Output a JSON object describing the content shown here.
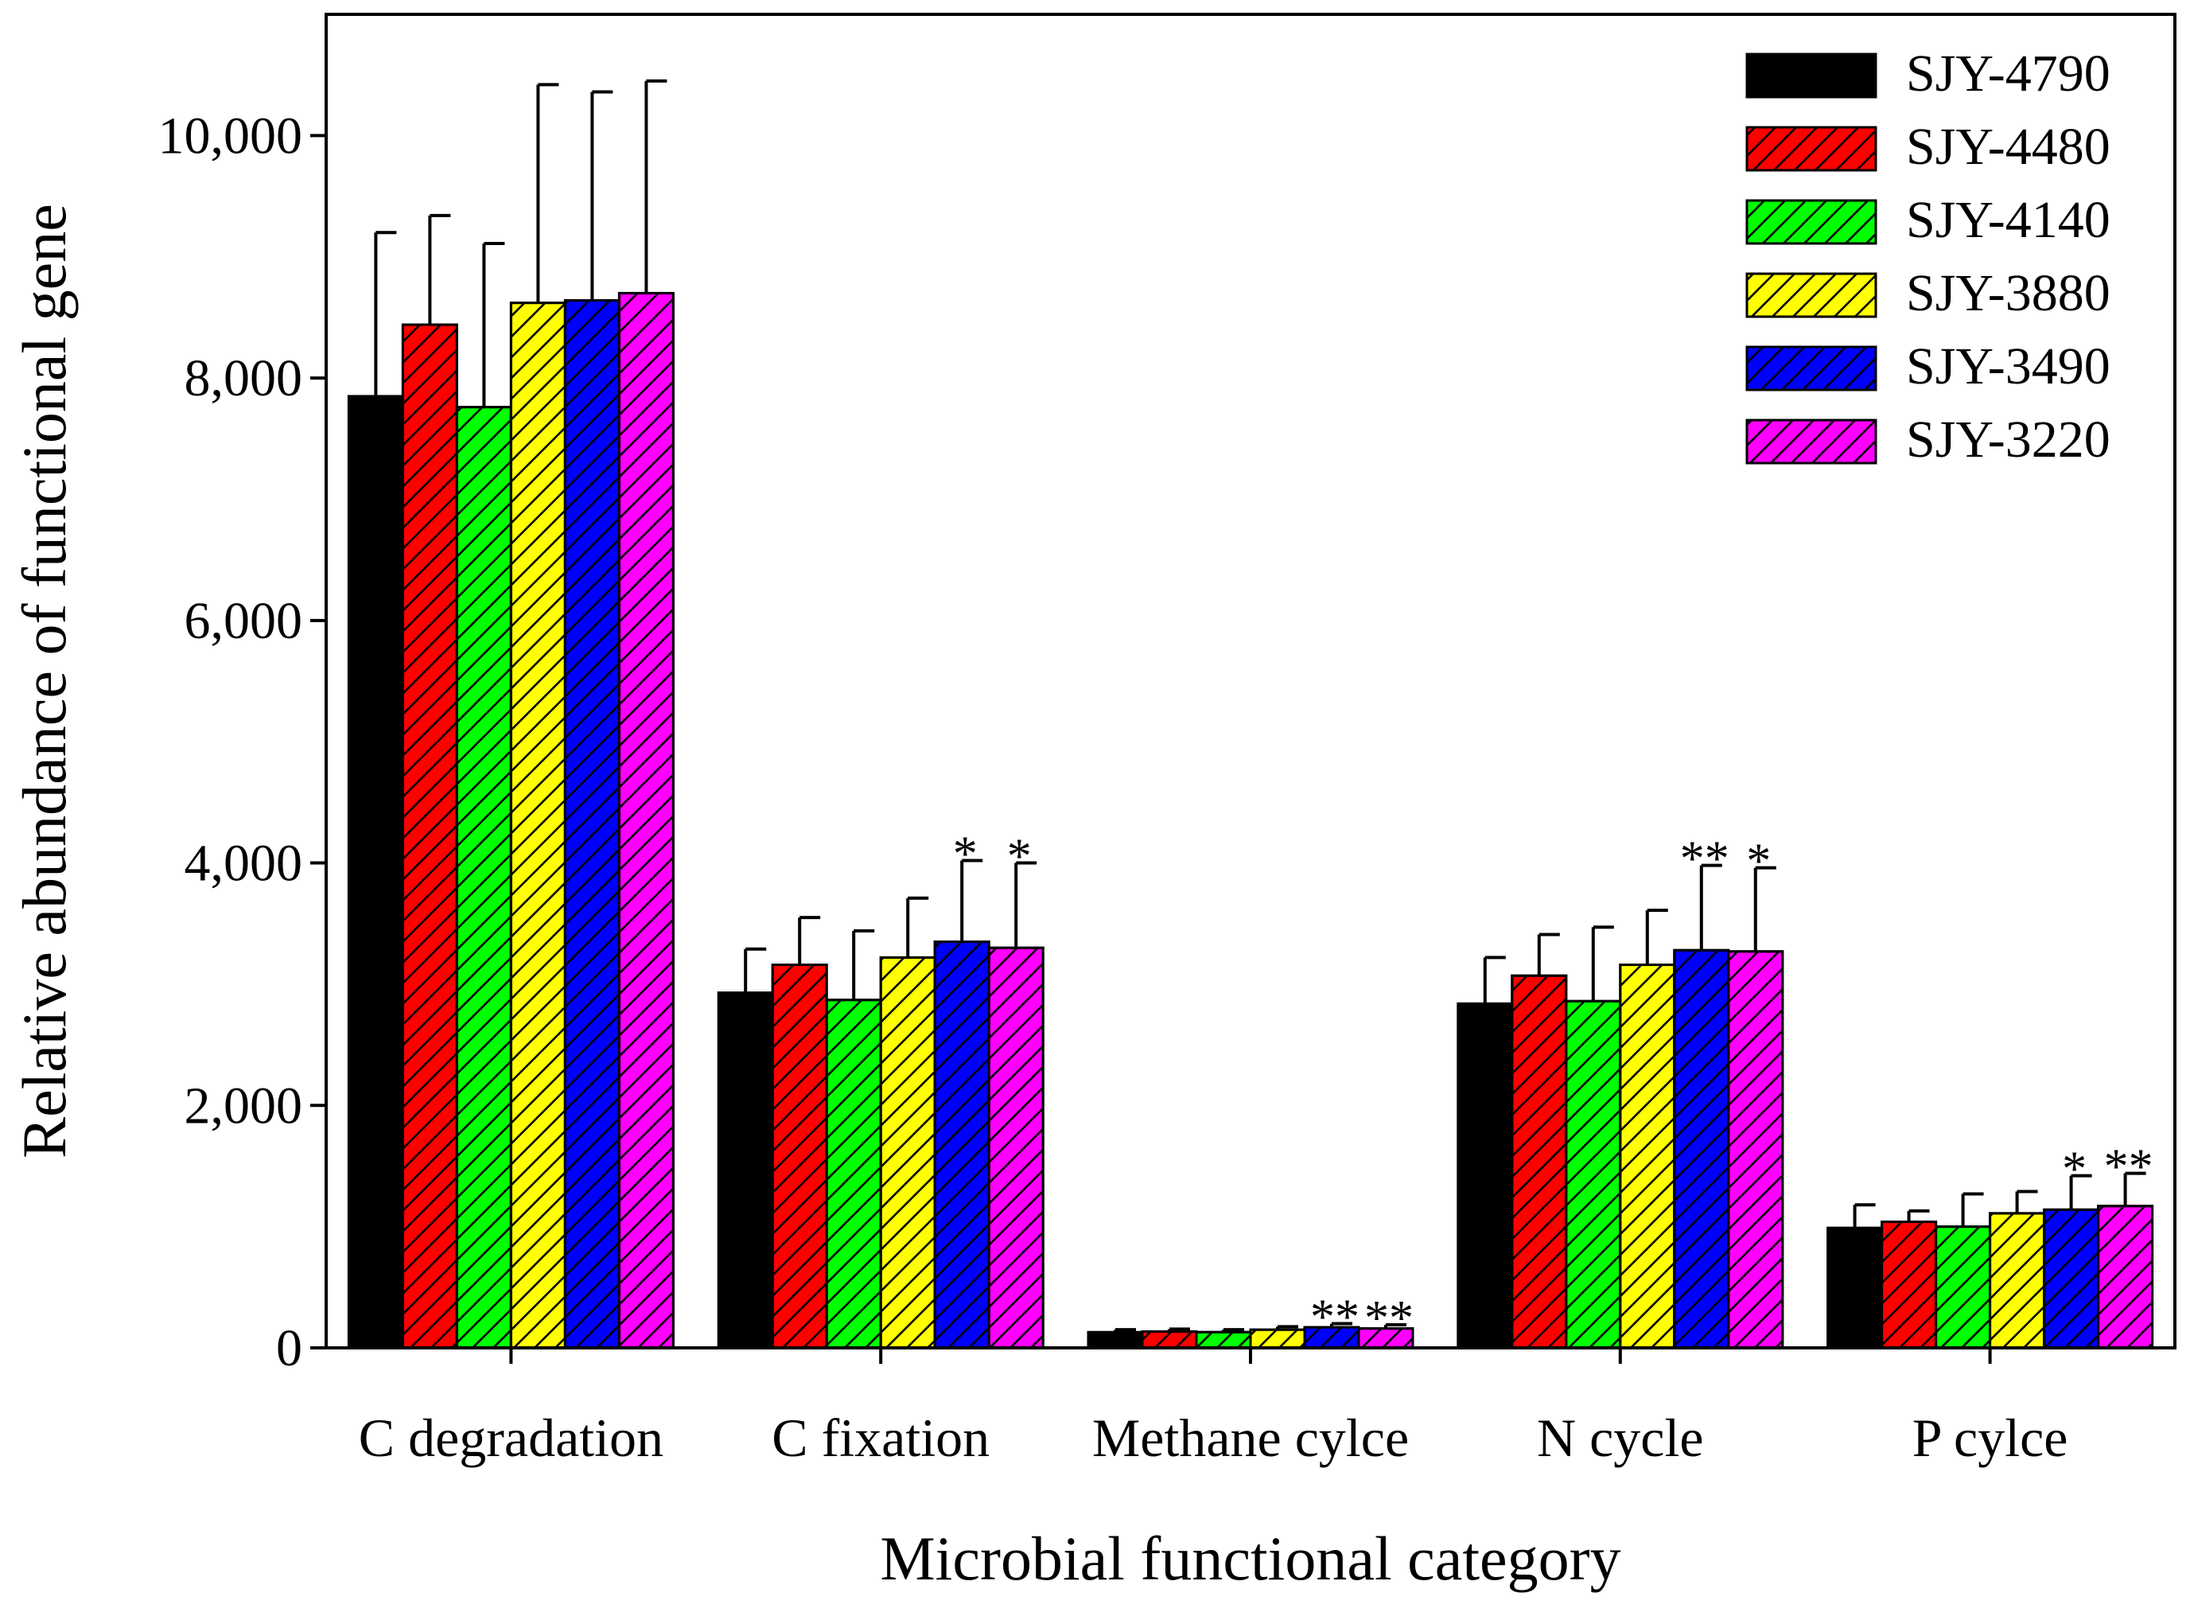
{
  "chart_data": {
    "type": "bar",
    "title": "",
    "xlabel": "Microbial functional category",
    "ylabel": "Relative abundance of functional gene",
    "ylim": [
      0,
      11000
    ],
    "yticks": [
      0,
      2000,
      4000,
      6000,
      8000,
      10000
    ],
    "ytick_labels": [
      "0",
      "2,000",
      "4,000",
      "6,000",
      "8,000",
      "10,000"
    ],
    "grid": false,
    "legend_position": "top-right",
    "categories": [
      "C degradation",
      "C fixation",
      "Methane cylce",
      "N cycle",
      "P cylce"
    ],
    "series": [
      {
        "name": "SJY-4790",
        "color": "#000000",
        "hatch": false,
        "values": [
          7850,
          2930,
          130,
          2840,
          990
        ],
        "errors": [
          1350,
          360,
          20,
          380,
          190
        ],
        "significance": [
          "",
          "",
          "",
          "",
          ""
        ]
      },
      {
        "name": "SJY-4480",
        "color": "#ff0000",
        "hatch": true,
        "values": [
          8440,
          3160,
          135,
          3070,
          1040
        ],
        "errors": [
          900,
          390,
          20,
          340,
          90
        ],
        "significance": [
          "",
          "",
          "",
          "",
          ""
        ]
      },
      {
        "name": "SJY-4140",
        "color": "#00ff00",
        "hatch": true,
        "values": [
          7760,
          2870,
          130,
          2860,
          1000
        ],
        "errors": [
          1350,
          570,
          20,
          610,
          270
        ],
        "significance": [
          "",
          "",
          "",
          "",
          ""
        ]
      },
      {
        "name": "SJY-3880",
        "color": "#ffff00",
        "hatch": true,
        "values": [
          8620,
          3220,
          150,
          3160,
          1110
        ],
        "errors": [
          1800,
          490,
          25,
          450,
          180
        ],
        "significance": [
          "",
          "",
          "",
          "",
          ""
        ]
      },
      {
        "name": "SJY-3490",
        "color": "#0000ff",
        "hatch": true,
        "values": [
          8640,
          3350,
          170,
          3280,
          1140
        ],
        "errors": [
          1720,
          670,
          30,
          700,
          280
        ],
        "significance": [
          "",
          "*",
          "**",
          "**",
          "*"
        ]
      },
      {
        "name": "SJY-3220",
        "color": "#ff00ff",
        "hatch": true,
        "values": [
          8700,
          3300,
          160,
          3270,
          1170
        ],
        "errors": [
          1750,
          700,
          30,
          690,
          270
        ],
        "significance": [
          "",
          "*",
          "**",
          "*",
          "**"
        ]
      }
    ]
  }
}
